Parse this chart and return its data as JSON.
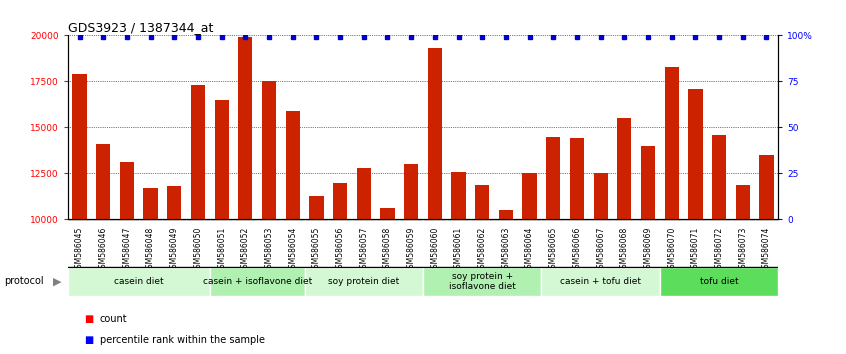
{
  "title": "GDS3923 / 1387344_at",
  "categories": [
    "GSM586045",
    "GSM586046",
    "GSM586047",
    "GSM586048",
    "GSM586049",
    "GSM586050",
    "GSM586051",
    "GSM586052",
    "GSM586053",
    "GSM586054",
    "GSM586055",
    "GSM586056",
    "GSM586057",
    "GSM586058",
    "GSM586059",
    "GSM586060",
    "GSM586061",
    "GSM586062",
    "GSM586063",
    "GSM586064",
    "GSM586065",
    "GSM586066",
    "GSM586067",
    "GSM586068",
    "GSM586069",
    "GSM586070",
    "GSM586071",
    "GSM586072",
    "GSM586073",
    "GSM586074"
  ],
  "counts": [
    17900,
    14100,
    13100,
    11700,
    11800,
    17300,
    16500,
    19900,
    17500,
    15900,
    11300,
    12000,
    12800,
    10600,
    13000,
    19300,
    12600,
    11900,
    10500,
    12500,
    14500,
    14400,
    12500,
    15500,
    14000,
    18300,
    17100,
    14600,
    11900,
    13500
  ],
  "percentile_ranks": [
    99,
    99,
    99,
    99,
    99,
    99,
    99,
    99,
    99,
    99,
    99,
    99,
    99,
    99,
    99,
    99,
    99,
    99,
    99,
    99,
    99,
    99,
    99,
    99,
    99,
    99,
    99,
    99,
    99,
    99
  ],
  "groups": [
    {
      "label": "casein diet",
      "start": 0,
      "end": 6,
      "color": "#d4f7d4"
    },
    {
      "label": "casein + isoflavone diet",
      "start": 6,
      "end": 10,
      "color": "#b0f0b0"
    },
    {
      "label": "soy protein diet",
      "start": 10,
      "end": 15,
      "color": "#d4f7d4"
    },
    {
      "label": "soy protein +\nisoflavone diet",
      "start": 15,
      "end": 20,
      "color": "#b0f0b0"
    },
    {
      "label": "casein + tofu diet",
      "start": 20,
      "end": 25,
      "color": "#d4f7d4"
    },
    {
      "label": "tofu diet",
      "start": 25,
      "end": 30,
      "color": "#5cdd5c"
    }
  ],
  "bar_color": "#cc2200",
  "dot_color": "#0000cc",
  "ylim_left": [
    10000,
    20000
  ],
  "ylim_right": [
    0,
    100
  ],
  "yticks_left": [
    10000,
    12500,
    15000,
    17500,
    20000
  ],
  "yticks_right": [
    0,
    25,
    50,
    75,
    100
  ],
  "ytick_right_labels": [
    "0",
    "25",
    "50",
    "75",
    "100%"
  ],
  "grid_values": [
    12500,
    15000,
    17500,
    20000
  ],
  "background_color": "#ffffff",
  "title_fontsize": 9,
  "tick_fontsize": 5.5,
  "group_fontsize": 6.5,
  "legend_fontsize": 7
}
